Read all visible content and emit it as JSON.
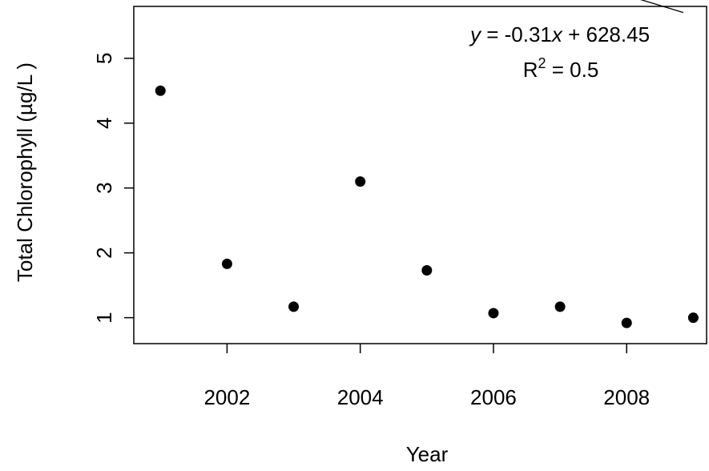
{
  "chart_data": {
    "type": "scatter",
    "xlabel": "Year",
    "ylabel": "Total Chlorophyll (µg/L )",
    "x_ticks": [
      2002,
      2004,
      2006,
      2008
    ],
    "y_ticks": [
      1,
      2,
      3,
      4,
      5
    ],
    "xlim": [
      2000.6,
      2009.2
    ],
    "ylim": [
      0.6,
      5.8
    ],
    "grid": false,
    "points": [
      {
        "x": 2001,
        "y": 4.5
      },
      {
        "x": 2002,
        "y": 1.83
      },
      {
        "x": 2003,
        "y": 1.17
      },
      {
        "x": 2004,
        "y": 3.1
      },
      {
        "x": 2005,
        "y": 1.73
      },
      {
        "x": 2006,
        "y": 1.07
      },
      {
        "x": 2007,
        "y": 1.17
      },
      {
        "x": 2008,
        "y": 0.92
      },
      {
        "x": 2009,
        "y": 1.0
      }
    ],
    "trendline": {
      "slope": -0.31,
      "intercept": 628.45,
      "x_start": 2001,
      "x_end": 2008.85
    },
    "annotation": {
      "eq_y": "y",
      "eq_equals": " = -0.31",
      "eq_x": "x",
      "eq_rest": " + 628.45",
      "r2_label": "R",
      "r2_sup": "2",
      "r2_rest": " = 0.5"
    }
  }
}
